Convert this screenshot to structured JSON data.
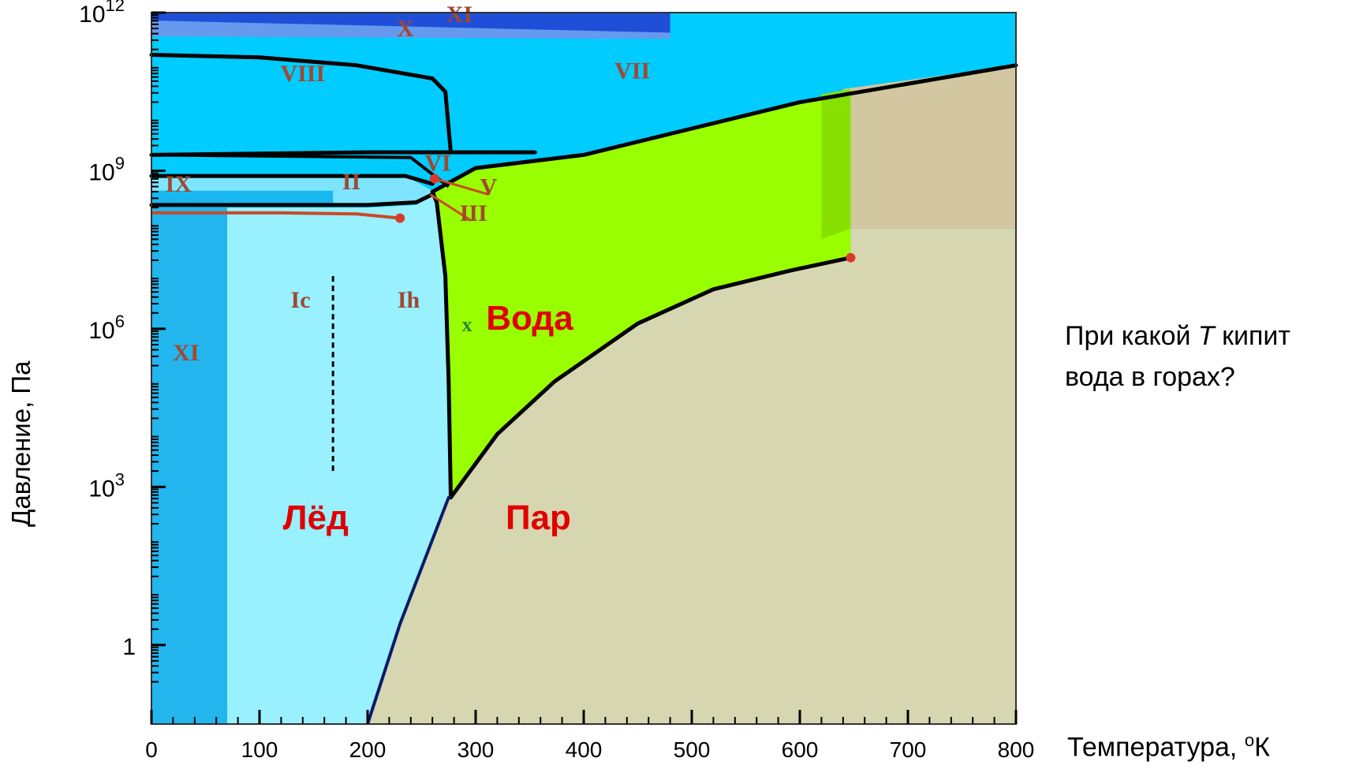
{
  "chart_data": {
    "type": "area",
    "title": "",
    "xlabel": "Температура, ",
    "xlabel_unit_sup": "o",
    "xlabel_unit": "К",
    "ylabel": "Давление, Па",
    "xlim": [
      0,
      800
    ],
    "ylim_log10_pressure_pa": [
      -1.5,
      12
    ],
    "x_scale": "linear",
    "y_scale": "log",
    "x_ticks": [
      "0",
      "100",
      "200",
      "300",
      "400",
      "500",
      "600",
      "700",
      "800"
    ],
    "y_ticks": [
      {
        "value": 1,
        "base": "1",
        "exp": ""
      },
      {
        "value": 1000,
        "base": "10",
        "exp": "3"
      },
      {
        "value": 1000000,
        "base": "10",
        "exp": "6"
      },
      {
        "value": 1000000000,
        "base": "10",
        "exp": "9"
      },
      {
        "value": 1000000000000,
        "base": "10",
        "exp": "12"
      }
    ],
    "grid": false,
    "regions": [
      {
        "label": "XI",
        "color": "#1f4fd8"
      },
      {
        "label": "X",
        "color": "#6699ee"
      },
      {
        "label": "VIII",
        "color": "#00ccff"
      },
      {
        "label": "VII",
        "color": "#00ccff"
      },
      {
        "label": "VI",
        "color": "#00ccff"
      },
      {
        "label": "V",
        "color": "#00ccff"
      },
      {
        "label": "III",
        "color": "#00ccff"
      },
      {
        "label": "II",
        "color": "#00ccff"
      },
      {
        "label": "IX",
        "color": "#1ab8f0"
      },
      {
        "label": "XI",
        "color": "#22b5ee"
      },
      {
        "label": "Ic",
        "color": "#99f0ff"
      },
      {
        "label": "Ih",
        "color": "#99f0ff"
      },
      {
        "label": "x",
        "color": "#99ff00"
      },
      {
        "label": "Вода",
        "color": "#99ff00"
      },
      {
        "label": "Пар",
        "color": "#d6d6b0"
      },
      {
        "label": "Лёд",
        "color": "#99f0ff"
      }
    ],
    "boundaries": [
      {
        "name": "sublimation",
        "points": [
          [
            200,
            -1.5
          ],
          [
            230,
            0.4
          ],
          [
            275,
            2.8
          ],
          [
            277,
            2.8
          ]
        ]
      },
      {
        "name": "vaporization",
        "points": [
          [
            277,
            2.8
          ],
          [
            320,
            4.0
          ],
          [
            373,
            5.0
          ],
          [
            450,
            6.1
          ],
          [
            520,
            6.75
          ],
          [
            590,
            7.1
          ],
          [
            647,
            7.35
          ]
        ]
      },
      {
        "name": "melting",
        "points": [
          [
            277,
            2.8
          ],
          [
            275,
            5.0
          ],
          [
            272,
            7.0
          ],
          [
            264,
            8.4
          ],
          [
            260,
            8.6
          ]
        ]
      },
      {
        "name": "VII-liquid",
        "points": [
          [
            260,
            8.6
          ],
          [
            300,
            9.05
          ],
          [
            400,
            9.3
          ],
          [
            500,
            9.8
          ],
          [
            600,
            10.3
          ],
          [
            800,
            11.0
          ]
        ]
      },
      {
        "name": "VI-VII-VIII",
        "points": [
          [
            0,
            9.3
          ],
          [
            200,
            9.35
          ],
          [
            300,
            9.35
          ],
          [
            355,
            9.35
          ]
        ]
      },
      {
        "name": "VIII-top",
        "points": [
          [
            0,
            11.2
          ],
          [
            100,
            11.15
          ],
          [
            190,
            11.0
          ],
          [
            260,
            10.75
          ],
          [
            272,
            10.5
          ],
          [
            277,
            9.35
          ]
        ]
      },
      {
        "name": "II-upper",
        "points": [
          [
            0,
            8.9
          ],
          [
            150,
            8.9
          ],
          [
            235,
            8.9
          ],
          [
            260,
            8.75
          ]
        ]
      },
      {
        "name": "Ih-II",
        "points": [
          [
            0,
            8.35
          ],
          [
            200,
            8.35
          ],
          [
            245,
            8.4
          ],
          [
            260,
            8.55
          ]
        ]
      }
    ],
    "critical_point": {
      "T": 647,
      "logP": 7.35
    },
    "triple_points": [
      {
        "T": 230,
        "logP": 8.1
      },
      {
        "T": 262,
        "logP": 8.85
      }
    ],
    "phase_labels": [
      {
        "text": "Вода",
        "color": "#e00000",
        "bold": true
      },
      {
        "text": "Лёд",
        "color": "#e00000",
        "bold": true
      },
      {
        "text": "Пар",
        "color": "#e00000",
        "bold": true
      }
    ],
    "roman_labels": [
      "XI",
      "X",
      "VIII",
      "VII",
      "VI",
      "V",
      "III",
      "II",
      "IX",
      "Ic",
      "Ih",
      "XI",
      "x"
    ]
  },
  "question": {
    "part1": "При какой ",
    "variable": "T",
    "part2": " кипит вода в горах?"
  }
}
